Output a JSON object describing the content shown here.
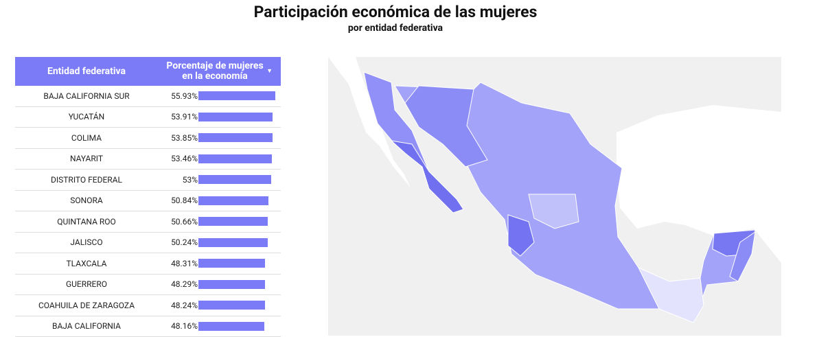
{
  "chart_data": {
    "type": "bar",
    "title": "Participación económica de las mujeres",
    "subtitle": "por entidad federativa",
    "headers": [
      "Entidad federativa",
      "Porcentaje de mujeres en la economía"
    ],
    "categories": [
      "BAJA CALIFORNIA SUR",
      "YUCATÁN",
      "COLIMA",
      "NAYARIT",
      "DISTRITO FEDERAL",
      "SONORA",
      "QUINTANA ROO",
      "JALISCO",
      "TLAXCALA",
      "GUERRERO",
      "COAHUILA DE ZARAGOZA",
      "BAJA CALIFORNIA"
    ],
    "values": [
      55.93,
      53.91,
      53.85,
      53.46,
      53,
      50.84,
      50.66,
      50.24,
      48.31,
      48.29,
      48.24,
      48.16
    ],
    "value_labels": [
      "55.93%",
      "53.91%",
      "53.85%",
      "53.46%",
      "53%",
      "50.84%",
      "50.66%",
      "50.24%",
      "48.31%",
      "48.29%",
      "48.24%",
      "48.16%"
    ],
    "color": "#7b7bf7"
  }
}
